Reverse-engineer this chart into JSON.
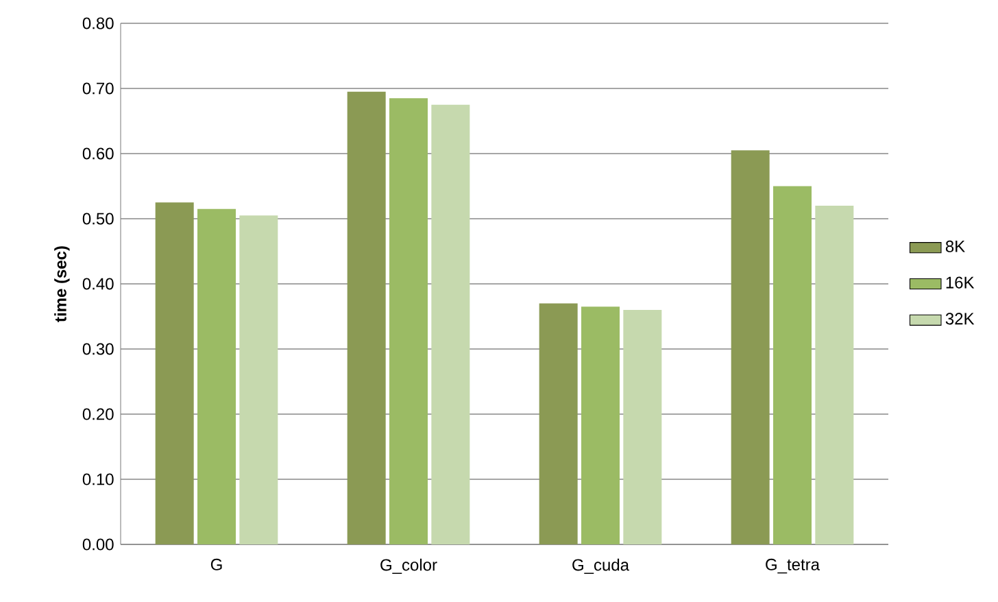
{
  "chart_data": {
    "type": "bar",
    "ylabel": "time (sec)",
    "categories": [
      "G",
      "G_color",
      "G_cuda",
      "G_tetra"
    ],
    "series": [
      {
        "name": "8K",
        "color": "#8b9a54",
        "values": [
          0.525,
          0.695,
          0.37,
          0.605
        ]
      },
      {
        "name": "16K",
        "color": "#9bbb64",
        "values": [
          0.515,
          0.685,
          0.365,
          0.55
        ]
      },
      {
        "name": "32K",
        "color": "#c6d9ae",
        "values": [
          0.505,
          0.675,
          0.36,
          0.52
        ]
      }
    ],
    "ylim": [
      0,
      0.8
    ],
    "yticks": [
      {
        "value": 0,
        "label": "0.00"
      },
      {
        "value": 0.1,
        "label": "0.10"
      },
      {
        "value": 0.2,
        "label": "0.20"
      },
      {
        "value": 0.3,
        "label": "0.30"
      },
      {
        "value": 0.4,
        "label": "0.40"
      },
      {
        "value": 0.5,
        "label": "0.50"
      },
      {
        "value": 0.6,
        "label": "0.60"
      },
      {
        "value": 0.7,
        "label": "0.70"
      },
      {
        "value": 0.8,
        "label": "0.80"
      }
    ],
    "grid": "y",
    "legend": "right"
  }
}
